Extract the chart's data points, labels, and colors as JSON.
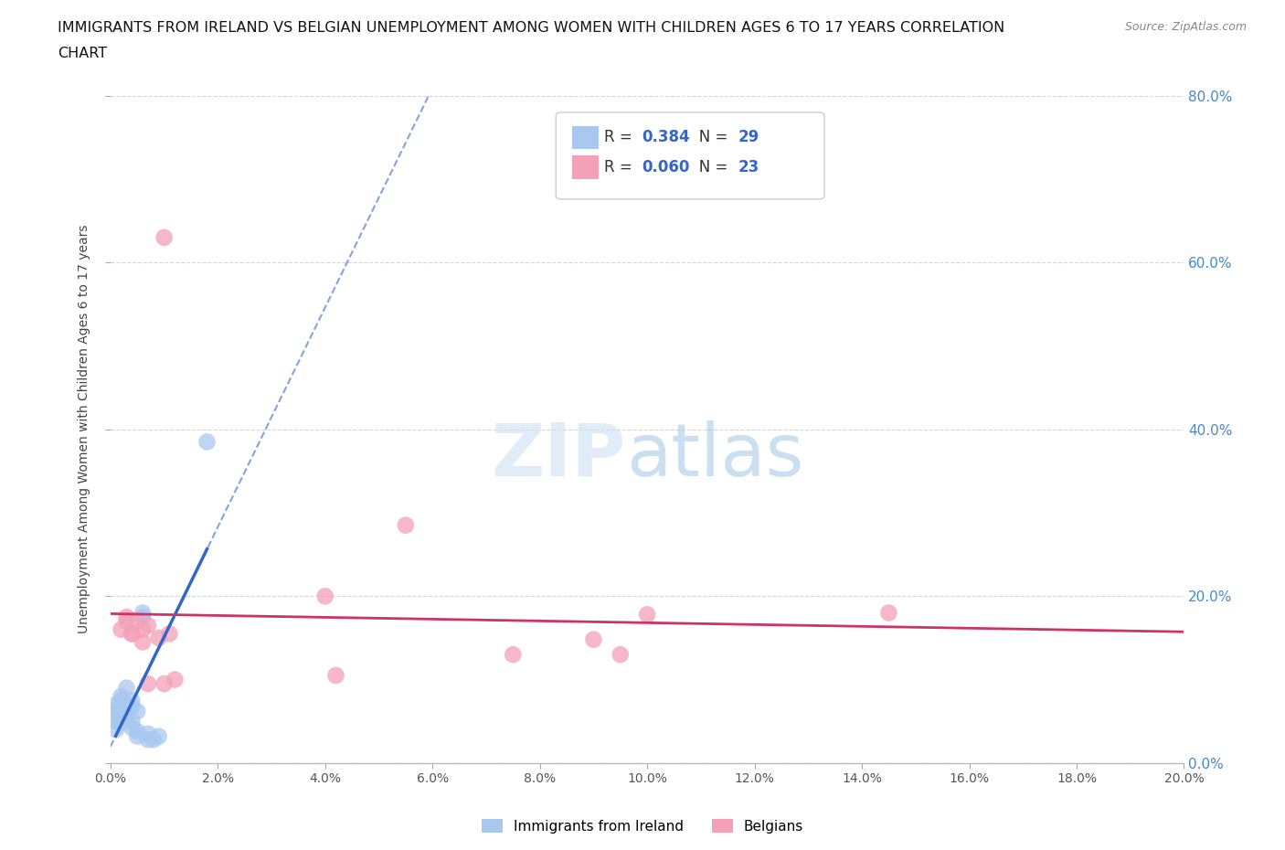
{
  "title_line1": "IMMIGRANTS FROM IRELAND VS BELGIAN UNEMPLOYMENT AMONG WOMEN WITH CHILDREN AGES 6 TO 17 YEARS CORRELATION",
  "title_line2": "CHART",
  "source": "Source: ZipAtlas.com",
  "ylabel": "Unemployment Among Women with Children Ages 6 to 17 years",
  "watermark": "ZIPatlas",
  "legend": {
    "ireland": {
      "R": 0.384,
      "N": 29,
      "color": "#aec6f0"
    },
    "belgian": {
      "R": 0.06,
      "N": 23,
      "color": "#f4a7b9"
    }
  },
  "xlim": [
    0.0,
    0.2
  ],
  "ylim": [
    0.0,
    0.8
  ],
  "xtick_count": 11,
  "yticks": [
    0.0,
    0.2,
    0.4,
    0.6,
    0.8
  ],
  "grid_color": "#cccccc",
  "background_color": "#ffffff",
  "ireland_scatter": [
    [
      0.001,
      0.05
    ],
    [
      0.001,
      0.04
    ],
    [
      0.001,
      0.06
    ],
    [
      0.001,
      0.065
    ],
    [
      0.001,
      0.07
    ],
    [
      0.002,
      0.075
    ],
    [
      0.002,
      0.065
    ],
    [
      0.002,
      0.055
    ],
    [
      0.002,
      0.048
    ],
    [
      0.002,
      0.08
    ],
    [
      0.003,
      0.09
    ],
    [
      0.003,
      0.062
    ],
    [
      0.003,
      0.058
    ],
    [
      0.003,
      0.07
    ],
    [
      0.003,
      0.055
    ],
    [
      0.004,
      0.075
    ],
    [
      0.004,
      0.068
    ],
    [
      0.004,
      0.05
    ],
    [
      0.004,
      0.042
    ],
    [
      0.005,
      0.062
    ],
    [
      0.005,
      0.038
    ],
    [
      0.005,
      0.032
    ],
    [
      0.006,
      0.18
    ],
    [
      0.006,
      0.175
    ],
    [
      0.007,
      0.035
    ],
    [
      0.007,
      0.028
    ],
    [
      0.008,
      0.028
    ],
    [
      0.009,
      0.032
    ],
    [
      0.018,
      0.385
    ]
  ],
  "belgian_scatter": [
    [
      0.002,
      0.16
    ],
    [
      0.003,
      0.17
    ],
    [
      0.003,
      0.175
    ],
    [
      0.004,
      0.155
    ],
    [
      0.004,
      0.155
    ],
    [
      0.005,
      0.17
    ],
    [
      0.006,
      0.16
    ],
    [
      0.006,
      0.145
    ],
    [
      0.007,
      0.165
    ],
    [
      0.007,
      0.095
    ],
    [
      0.009,
      0.15
    ],
    [
      0.01,
      0.095
    ],
    [
      0.01,
      0.63
    ],
    [
      0.011,
      0.155
    ],
    [
      0.012,
      0.1
    ],
    [
      0.04,
      0.2
    ],
    [
      0.042,
      0.105
    ],
    [
      0.055,
      0.285
    ],
    [
      0.075,
      0.13
    ],
    [
      0.09,
      0.148
    ],
    [
      0.095,
      0.13
    ],
    [
      0.1,
      0.178
    ],
    [
      0.145,
      0.18
    ]
  ],
  "ireland_line_color": "#3366cc",
  "belgian_line_color": "#cc3366",
  "ireland_scatter_color": "#a8c8f0",
  "belgian_scatter_color": "#f4a0b8",
  "ireland_line_xrange": [
    0.001,
    0.018
  ],
  "line_extend_xrange": [
    0.0,
    0.2
  ]
}
